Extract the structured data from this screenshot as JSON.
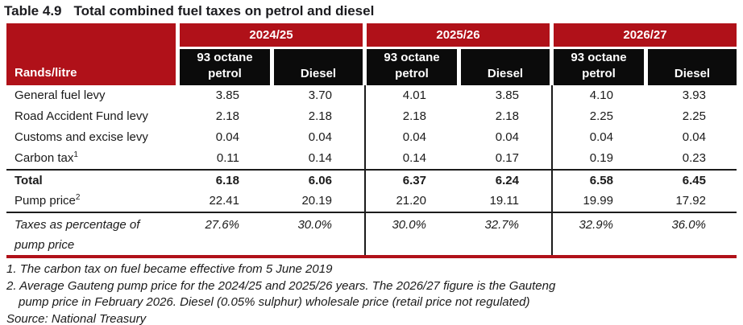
{
  "title": {
    "number": "Table 4.9",
    "caption": "Total combined fuel taxes on petrol and diesel"
  },
  "colors": {
    "header_red": "#b01119",
    "header_black": "#0b0b0b",
    "bottom_rule_red": "#b01119",
    "rule_black": "#1c1c1c",
    "text": "#1a1a1a",
    "header_text": "#ffffff"
  },
  "table": {
    "unit_label": "Rands/litre",
    "years": [
      "2024/25",
      "2025/26",
      "2026/27"
    ],
    "petrol_header": "93 octane petrol",
    "diesel_header": "Diesel",
    "rows": [
      {
        "label": "General fuel levy",
        "values": [
          "3.85",
          "3.70",
          "4.01",
          "3.85",
          "4.10",
          "3.93"
        ]
      },
      {
        "label": "Road Accident Fund levy",
        "values": [
          "2.18",
          "2.18",
          "2.18",
          "2.18",
          "2.25",
          "2.25"
        ]
      },
      {
        "label": "Customs and excise levy",
        "values": [
          "0.04",
          "0.04",
          "0.04",
          "0.04",
          "0.04",
          "0.04"
        ]
      },
      {
        "label": "Carbon tax",
        "footnote_mark": "1",
        "values": [
          "0.11",
          "0.14",
          "0.14",
          "0.17",
          "0.19",
          "0.23"
        ]
      }
    ],
    "total_row": {
      "label": "Total",
      "values": [
        "6.18",
        "6.06",
        "6.37",
        "6.24",
        "6.58",
        "6.45"
      ]
    },
    "pump_row": {
      "label": "Pump price",
      "footnote_mark": "2",
      "values": [
        "22.41",
        "20.19",
        "21.20",
        "19.11",
        "19.99",
        "17.92"
      ]
    },
    "pct_row": {
      "label": "Taxes as percentage of pump price",
      "values": [
        "27.6%",
        "30.0%",
        "30.0%",
        "32.7%",
        "32.9%",
        "36.0%"
      ]
    }
  },
  "footnotes": {
    "items": [
      {
        "marker": "1.",
        "lines": [
          "The carbon tax on fuel became effective from 5 June 2019"
        ]
      },
      {
        "marker": "2.",
        "lines": [
          "Average Gauteng pump price for the 2024/25 and 2025/26 years. The 2026/27 figure is the Gauteng",
          "pump price in February 2026. Diesel (0.05% sulphur) wholesale price (retail price not regulated)"
        ]
      }
    ],
    "source": "Source: National Treasury"
  }
}
